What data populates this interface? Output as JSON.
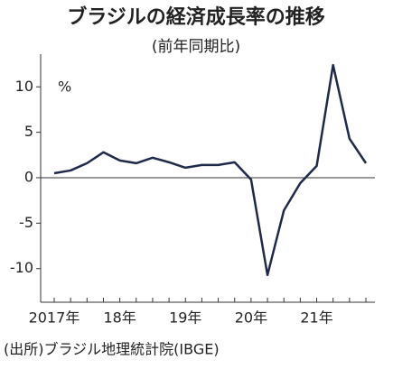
{
  "chart_data": {
    "type": "line",
    "title": "ブラジルの経済成長率の推移",
    "subtitle": "(前年同期比)",
    "unit_label": "%",
    "source": "(出所)ブラジル地理統計院(IBGE)",
    "categories": [
      "2017年",
      null,
      null,
      null,
      "18年",
      null,
      null,
      null,
      "19年",
      null,
      null,
      null,
      "20年",
      null,
      null,
      null,
      "21年",
      null,
      null,
      null
    ],
    "series": [
      {
        "color": "#1f2a4a",
        "values": [
          0.5,
          0.8,
          1.6,
          2.8,
          1.9,
          1.6,
          2.2,
          1.7,
          1.1,
          1.4,
          1.4,
          1.7,
          -0.2,
          -10.7,
          -3.6,
          -0.6,
          1.3,
          12.4,
          4.3,
          1.6
        ]
      }
    ],
    "ylim": [
      -13.7,
      13.6
    ],
    "yticks": [
      10,
      5,
      0,
      -5,
      -10
    ]
  }
}
